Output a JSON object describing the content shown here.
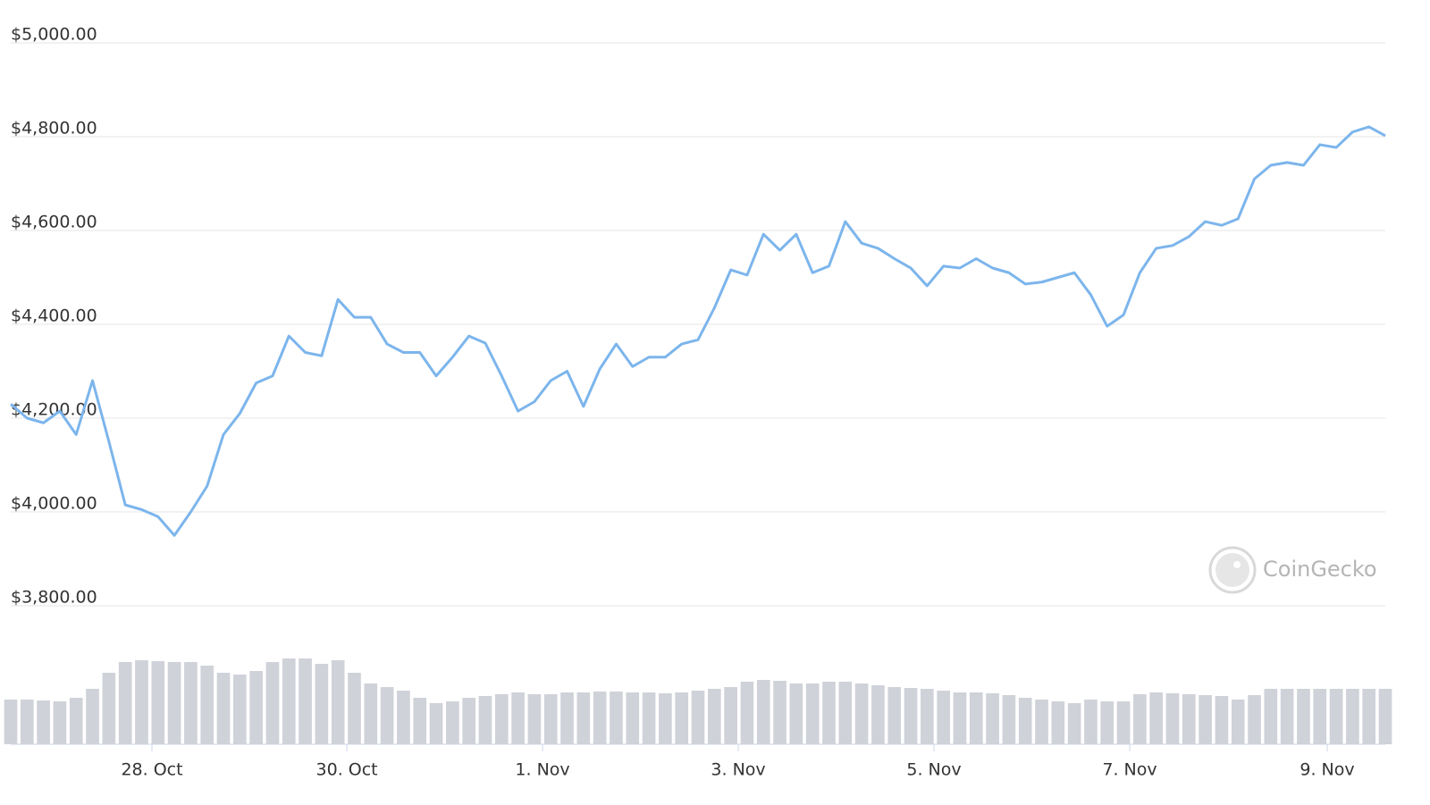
{
  "chart_data": {
    "type": "line",
    "xlim": [
      0,
      84
    ],
    "xticks": [
      {
        "value": 8.63,
        "label": "28. Oct"
      },
      {
        "value": 20.54,
        "label": "30. Oct"
      },
      {
        "value": 32.5,
        "label": "1. Nov"
      },
      {
        "value": 44.46,
        "label": "3. Nov"
      },
      {
        "value": 56.42,
        "label": "5. Nov"
      },
      {
        "value": 68.38,
        "label": "7. Nov"
      },
      {
        "value": 80.45,
        "label": "9. Nov"
      }
    ],
    "ylim": [
      3800,
      5000
    ],
    "yticks": [
      {
        "value": 3800,
        "label": "$3,800.00"
      },
      {
        "value": 4000,
        "label": "$4,000.00"
      },
      {
        "value": 4200,
        "label": "$4,200.00"
      },
      {
        "value": 4400,
        "label": "$4,400.00"
      },
      {
        "value": 4600,
        "label": "$4,600.00"
      },
      {
        "value": 4800,
        "label": "$4,800.00"
      },
      {
        "value": 5000,
        "label": "$5,000.00"
      }
    ],
    "y2lim": [
      0,
      100
    ],
    "grid": true,
    "watermark": "CoinGecko",
    "series": [
      {
        "color": "#7cb5ec",
        "values": [
          4230,
          4200,
          4190,
          4215,
          4165,
          4280,
          4150,
          4015,
          4005,
          3990,
          3950,
          4000,
          4055,
          4165,
          4210,
          4275,
          4290,
          4375,
          4340,
          4333,
          4453,
          4415,
          4415,
          4358,
          4340,
          4340,
          4290,
          4330,
          4375,
          4360,
          4290,
          4215,
          4235,
          4280,
          4300,
          4225,
          4305,
          4358,
          4310,
          4330,
          4330,
          4358,
          4367,
          4435,
          4516,
          4505,
          4592,
          4558,
          4592,
          4510,
          4524,
          4619,
          4573,
          4562,
          4540,
          4520,
          4482,
          4524,
          4520,
          4540,
          4520,
          4510,
          4486,
          4490,
          4500,
          4510,
          4463,
          4396,
          4420,
          4510,
          4562,
          4568,
          4587,
          4619,
          4611,
          4625,
          4710,
          4739,
          4745,
          4739,
          4783,
          4777,
          4810,
          4821,
          4802
        ]
      },
      {
        "type": "bar",
        "axis": "y2",
        "color": "#cfd2d8",
        "values": [
          50,
          50,
          49,
          48,
          52,
          62,
          80,
          92,
          94,
          93,
          92,
          92,
          88,
          80,
          78,
          82,
          92,
          96,
          96,
          90,
          94,
          80,
          68,
          64,
          60,
          52,
          46,
          48,
          52,
          54,
          56,
          58,
          56,
          56,
          58,
          58,
          59,
          59,
          58,
          58,
          57,
          58,
          60,
          62,
          64,
          70,
          72,
          71,
          68,
          68,
          70,
          70,
          68,
          66,
          64,
          63,
          62,
          60,
          58,
          58,
          57,
          55,
          52,
          50,
          48,
          46,
          50,
          48,
          48,
          56,
          58,
          57,
          56,
          55,
          54,
          50,
          55,
          62,
          62,
          62,
          62,
          62,
          62,
          62,
          62
        ]
      }
    ]
  }
}
